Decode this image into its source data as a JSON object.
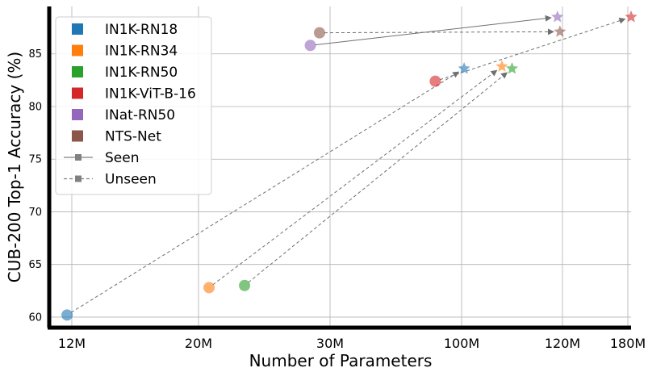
{
  "chart_data": {
    "type": "scatter",
    "xlabel": "Number of Parameters",
    "ylabel": "CUB-200 Top-1 Accuracy (%)",
    "x_scale": "categorical-log",
    "x_ticks": [
      "12M",
      "20M",
      "30M",
      "100M",
      "120M",
      "180M"
    ],
    "ylim": [
      59,
      89.5
    ],
    "y_ticks": [
      60,
      65,
      70,
      75,
      80,
      85
    ],
    "grid": true,
    "legend_position": "top-left",
    "series": [
      {
        "name": "IN1K-RN18",
        "color": "#1f77b4",
        "start": {
          "x": 11.7,
          "y": 60.2
        },
        "end": {
          "x": 100.5,
          "y": 83.6
        },
        "style": "unseen"
      },
      {
        "name": "IN1K-RN34",
        "color": "#ff7f0e",
        "start": {
          "x": 20.8,
          "y": 62.8
        },
        "end": {
          "x": 108,
          "y": 83.8
        },
        "style": "unseen"
      },
      {
        "name": "IN1K-RN50",
        "color": "#2ca02c",
        "start": {
          "x": 23.5,
          "y": 63.0
        },
        "end": {
          "x": 110,
          "y": 83.6
        },
        "style": "unseen"
      },
      {
        "name": "IN1K-ViT-B-16",
        "color": "#d62728",
        "start": {
          "x": 86,
          "y": 82.4
        },
        "end": {
          "x": 183,
          "y": 88.5
        },
        "style": "unseen"
      },
      {
        "name": "INat-RN50",
        "color": "#9467bd",
        "start": {
          "x": 28.5,
          "y": 85.8
        },
        "end": {
          "x": 119,
          "y": 88.5
        },
        "style": "seen"
      },
      {
        "name": "NTS-Net",
        "color": "#8c564b",
        "start": {
          "x": 29.2,
          "y": 87.0
        },
        "end": {
          "x": 119.5,
          "y": 87.1
        },
        "style": "unseen"
      }
    ],
    "line_legend": [
      {
        "label": "Seen",
        "style": "seen"
      },
      {
        "label": "Unseen",
        "style": "unseen"
      }
    ]
  }
}
